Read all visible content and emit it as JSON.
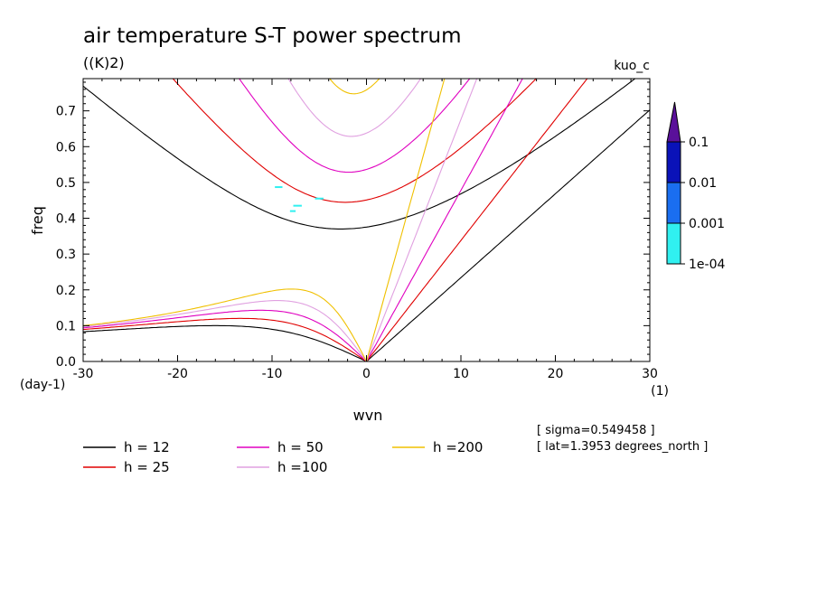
{
  "chart_data": {
    "type": "line",
    "title": "air temperature S-T power spectrum",
    "units": "((K)2)",
    "dataset_tag": "kuo_c",
    "xlabel": "wvn",
    "ylabel": "freq",
    "x_unit": "(1)",
    "y_unit": "(day-1)",
    "xlim": [
      -30,
      30
    ],
    "ylim": [
      0,
      0.79
    ],
    "xticks": [
      "-30",
      "-20",
      "-10",
      "0",
      "10",
      "20",
      "30"
    ],
    "yticks": [
      "0.0",
      "0.1",
      "0.2",
      "0.3",
      "0.4",
      "0.5",
      "0.6",
      "0.7"
    ],
    "info": [
      "[ sigma=0.549458 ]",
      "[ lat=1.3953 degrees_north ]"
    ],
    "series": [
      {
        "name": "h = 12",
        "h": 12,
        "color": "#000000"
      },
      {
        "name": "h = 25",
        "h": 25,
        "color": "#e00000"
      },
      {
        "name": "h = 50",
        "h": 50,
        "color": "#e000c0"
      },
      {
        "name": "h =100",
        "h": 100,
        "color": "#e0a0e0"
      },
      {
        "name": "h =200",
        "h": 200,
        "color": "#f0c000"
      }
    ],
    "colorbar": {
      "labels": [
        "0.1",
        "0.01",
        "0.001",
        "1e-04"
      ],
      "colors": [
        "#5a109a",
        "#0a12b8",
        "#1a6ef0",
        "#30f0f0"
      ]
    },
    "contour_patches": [
      {
        "x": -9.3,
        "y": 0.487,
        "w": 0.8
      },
      {
        "x": -5.0,
        "y": 0.455,
        "w": 0.9
      },
      {
        "x": -7.3,
        "y": 0.435,
        "w": 0.9
      },
      {
        "x": -7.8,
        "y": 0.42,
        "w": 0.6
      }
    ]
  }
}
